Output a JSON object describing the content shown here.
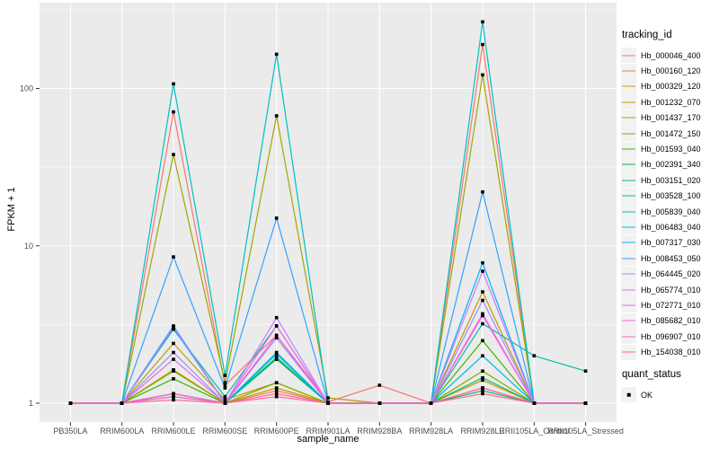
{
  "figure": {
    "background": "#FFFFFF",
    "panel_background": "#EBEBEB",
    "grid_color": "#FFFFFF",
    "axis_text_color": "#4D4D4D",
    "tick_mark_color": "#333333",
    "point_color": "#000000",
    "legend_key_background": "#F2F2F2"
  },
  "chart_data": {
    "type": "line",
    "title": "",
    "xlabel": "sample_name",
    "ylabel": "FPKM + 1",
    "y_scale": "log10",
    "y_tick_labels": [
      "1",
      "10",
      "100"
    ],
    "y_tick_values": [
      1,
      10,
      100
    ],
    "y_minor_values": [
      3.162,
      31.623,
      316.228
    ],
    "ylim": [
      0.83,
      350
    ],
    "grid": "on",
    "legend_position": "right",
    "point_marker": "filled-square",
    "categories": [
      "PB350LA",
      "RRIM600LA",
      "RRIM600LE",
      "RRIM600SE",
      "RRIM600PE",
      "RRIM901LA",
      "RRIM928BA",
      "RRIM928LA",
      "RRIM928LE",
      "RRII105LA_Control",
      "RRII105LA_Stressed"
    ],
    "series": [
      {
        "name": "Hb_000046_400",
        "color": "#F8766D",
        "values": [
          1.0,
          1.0,
          71,
          1.3,
          2.7,
          1.02,
          1.3,
          1.0,
          190,
          1.0,
          1.0
        ]
      },
      {
        "name": "Hb_000160_120",
        "color": "#EA8331",
        "values": [
          1.0,
          1.0,
          1.15,
          1.0,
          1.2,
          1.0,
          1.0,
          1.0,
          1.25,
          1.0,
          1.0
        ]
      },
      {
        "name": "Hb_000329_120",
        "color": "#D89000",
        "values": [
          1.0,
          1.0,
          1.63,
          1.0,
          1.25,
          1.0,
          1.0,
          1.0,
          1.4,
          1.0,
          1.0
        ]
      },
      {
        "name": "Hb_001232_070",
        "color": "#C09B00",
        "values": [
          1.0,
          1.0,
          2.4,
          1.05,
          1.35,
          1.0,
          1.0,
          1.0,
          5.1,
          1.0,
          1.0
        ]
      },
      {
        "name": "Hb_001437_170",
        "color": "#A3A500",
        "values": [
          1.0,
          1.0,
          38,
          1.35,
          67,
          1.08,
          1.0,
          1.0,
          122,
          1.0,
          1.0
        ]
      },
      {
        "name": "Hb_001472_150",
        "color": "#7CAE00",
        "values": [
          1.0,
          1.0,
          1.6,
          1.0,
          1.35,
          1.0,
          1.0,
          1.0,
          1.6,
          1.0,
          1.0
        ]
      },
      {
        "name": "Hb_001593_040",
        "color": "#39B600",
        "values": [
          1.0,
          1.0,
          1.43,
          1.0,
          1.95,
          1.0,
          1.0,
          1.0,
          2.5,
          1.0,
          1.0
        ]
      },
      {
        "name": "Hb_002391_340",
        "color": "#00BB4E",
        "values": [
          1.0,
          1.0,
          1.15,
          1.0,
          1.95,
          1.0,
          1.0,
          1.0,
          1.2,
          1.0,
          1.0
        ]
      },
      {
        "name": "Hb_003151_020",
        "color": "#00BF7D",
        "values": [
          1.0,
          1.0,
          1.1,
          1.0,
          1.9,
          1.0,
          1.0,
          1.0,
          1.45,
          1.0,
          1.0
        ]
      },
      {
        "name": "Hb_003528_100",
        "color": "#00C1A3",
        "values": [
          1.0,
          1.0,
          2.95,
          1.1,
          3.1,
          1.0,
          1.0,
          1.0,
          3.2,
          2.0,
          1.6
        ]
      },
      {
        "name": "Hb_005839_040",
        "color": "#00BFC4",
        "values": [
          1.0,
          1.0,
          107,
          1.5,
          165,
          1.0,
          1.0,
          1.0,
          265,
          1.0,
          1.0
        ]
      },
      {
        "name": "Hb_006483_040",
        "color": "#00BAE0",
        "values": [
          1.0,
          1.0,
          3.1,
          1.0,
          2.1,
          1.0,
          1.0,
          1.0,
          2.0,
          1.0,
          1.0
        ]
      },
      {
        "name": "Hb_007317_030",
        "color": "#00B0F6",
        "values": [
          1.0,
          1.0,
          3.0,
          1.0,
          2.05,
          1.0,
          1.0,
          1.0,
          7.8,
          1.0,
          1.0
        ]
      },
      {
        "name": "Hb_008453_050",
        "color": "#35A2FF",
        "values": [
          1.0,
          1.0,
          8.5,
          1.25,
          15,
          1.0,
          1.0,
          1.0,
          22,
          1.0,
          1.0
        ]
      },
      {
        "name": "Hb_064445_020",
        "color": "#9590FF",
        "values": [
          1.0,
          1.0,
          2.1,
          1.0,
          2.6,
          1.0,
          1.0,
          1.0,
          4.5,
          1.0,
          1.0
        ]
      },
      {
        "name": "Hb_065774_010",
        "color": "#C77CFF",
        "values": [
          1.0,
          1.0,
          3.05,
          1.0,
          3.5,
          1.0,
          1.0,
          1.0,
          6.9,
          1.0,
          1.0
        ]
      },
      {
        "name": "Hb_072771_010",
        "color": "#E76BF3",
        "values": [
          1.0,
          1.0,
          1.9,
          1.0,
          3.1,
          1.0,
          1.0,
          1.0,
          3.7,
          1.0,
          1.0
        ]
      },
      {
        "name": "Hb_085682_010",
        "color": "#FA62DB",
        "values": [
          1.0,
          1.0,
          1.15,
          1.0,
          2.7,
          1.0,
          1.0,
          1.0,
          3.6,
          1.0,
          1.0
        ]
      },
      {
        "name": "Hb_096907_010",
        "color": "#FF62BC",
        "values": [
          1.0,
          1.0,
          1.1,
          1.0,
          1.15,
          1.0,
          1.0,
          1.0,
          1.25,
          1.0,
          1.0
        ]
      },
      {
        "name": "Hb_154038_010",
        "color": "#FF6A98",
        "values": [
          1.0,
          1.0,
          1.05,
          1.0,
          1.1,
          1.0,
          1.0,
          1.0,
          1.15,
          1.0,
          1.0
        ]
      }
    ],
    "legends": {
      "color": {
        "title": "tracking_id"
      },
      "shape": {
        "title": "quant_status",
        "items": [
          {
            "label": "OK",
            "marker": "filled-square",
            "color": "#000000"
          }
        ]
      }
    }
  }
}
